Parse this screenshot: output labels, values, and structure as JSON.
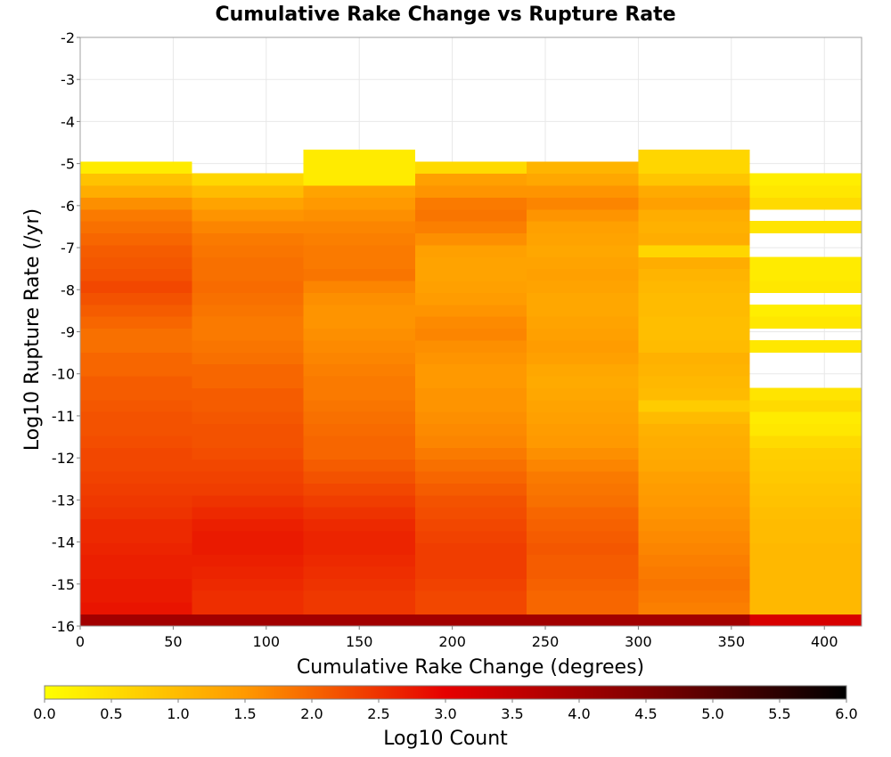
{
  "chart_data": {
    "type": "heatmap",
    "title": "Cumulative Rake Change vs Rupture Rate",
    "xlabel": "Cumulative Rake Change (degrees)",
    "ylabel": "Log10 Rupture Rate (/yr)",
    "xlim": [
      0,
      420
    ],
    "ylim": [
      -16,
      -2
    ],
    "xticks": [
      0,
      50,
      100,
      150,
      200,
      250,
      300,
      350,
      400
    ],
    "yticks": [
      -2,
      -3,
      -4,
      -5,
      -6,
      -7,
      -8,
      -9,
      -10,
      -11,
      -12,
      -13,
      -14,
      -15,
      -16
    ],
    "x_bin_edges": [
      0,
      60,
      120,
      180,
      240,
      300,
      360,
      420
    ],
    "y_bin_start": -16,
    "y_bin_width": 0.2833,
    "grid": true,
    "colorbar": {
      "label": "Log10 Count",
      "range": [
        0,
        6
      ],
      "ticks": [
        "0.0",
        "0.5",
        "1.0",
        "1.5",
        "2.0",
        "2.5",
        "3.0",
        "3.5",
        "4.0",
        "4.5",
        "5.0",
        "5.5",
        "6.0"
      ],
      "colors": [
        "#ffff00",
        "#ff9900",
        "#e60000",
        "#800000",
        "#000000"
      ]
    },
    "series": [
      {
        "x_range": [
          0,
          60
        ],
        "values": [
          4.0,
          2.8,
          2.75,
          2.75,
          2.7,
          2.7,
          2.65,
          2.6,
          2.6,
          2.5,
          2.45,
          2.4,
          2.35,
          2.3,
          2.3,
          2.25,
          2.2,
          2.2,
          2.15,
          2.1,
          2.1,
          2.0,
          2.0,
          1.9,
          1.9,
          2.0,
          2.1,
          2.2,
          2.3,
          2.2,
          2.15,
          2.1,
          2.0,
          1.9,
          1.8,
          1.6,
          1.2,
          0.9,
          0.3,
          null,
          null,
          null,
          null,
          null,
          null,
          null,
          null,
          null,
          null
        ]
      },
      {
        "x_range": [
          60,
          120
        ],
        "values": [
          4.0,
          2.55,
          2.55,
          2.6,
          2.65,
          2.7,
          2.75,
          2.75,
          2.7,
          2.6,
          2.5,
          2.4,
          2.35,
          2.3,
          2.25,
          2.2,
          2.2,
          2.15,
          2.1,
          2.1,
          2.0,
          2.0,
          1.9,
          1.85,
          1.8,
          1.8,
          1.85,
          1.9,
          1.95,
          1.9,
          1.9,
          1.85,
          1.8,
          1.7,
          1.55,
          1.35,
          1.0,
          0.6,
          null,
          null,
          null,
          null,
          null,
          null,
          null,
          null,
          null,
          null,
          null
        ]
      },
      {
        "x_range": [
          120,
          180
        ],
        "values": [
          4.0,
          2.45,
          2.45,
          2.5,
          2.55,
          2.6,
          2.65,
          2.65,
          2.6,
          2.5,
          2.4,
          2.3,
          2.2,
          2.1,
          2.0,
          2.0,
          1.95,
          1.9,
          1.85,
          1.8,
          1.8,
          1.75,
          1.7,
          1.65,
          1.6,
          1.55,
          1.55,
          1.6,
          1.7,
          1.85,
          1.8,
          1.8,
          1.75,
          1.7,
          1.6,
          1.5,
          1.35,
          0.3,
          0.3,
          0.3,
          null,
          null,
          null,
          null,
          null,
          null,
          null,
          null,
          null
        ]
      },
      {
        "x_range": [
          180,
          240
        ],
        "values": [
          4.0,
          2.3,
          2.3,
          2.35,
          2.4,
          2.4,
          2.4,
          2.35,
          2.3,
          2.25,
          2.2,
          2.1,
          2.0,
          1.9,
          1.8,
          1.7,
          1.65,
          1.6,
          1.55,
          1.55,
          1.5,
          1.5,
          1.55,
          1.6,
          1.7,
          1.65,
          1.55,
          1.45,
          1.4,
          1.35,
          1.35,
          1.4,
          1.6,
          1.75,
          1.85,
          1.8,
          1.55,
          1.4,
          0.55,
          null,
          null,
          null,
          null,
          null,
          null,
          null,
          null,
          null,
          null
        ]
      },
      {
        "x_range": [
          240,
          300
        ],
        "values": [
          4.0,
          2.0,
          2.0,
          2.05,
          2.1,
          2.1,
          2.15,
          2.1,
          2.05,
          2.0,
          1.9,
          1.85,
          1.8,
          1.7,
          1.6,
          1.5,
          1.45,
          1.4,
          1.35,
          1.3,
          1.25,
          1.3,
          1.4,
          1.45,
          1.4,
          1.35,
          1.3,
          1.3,
          1.35,
          1.4,
          1.35,
          1.3,
          1.35,
          1.4,
          1.55,
          1.7,
          1.55,
          1.3,
          1.1,
          null,
          null,
          null,
          null,
          null,
          null,
          null,
          null,
          null,
          null
        ]
      },
      {
        "x_range": [
          300,
          360
        ],
        "values": [
          4.0,
          1.75,
          1.8,
          1.85,
          1.8,
          1.75,
          1.7,
          1.65,
          1.6,
          1.55,
          1.5,
          1.45,
          1.4,
          1.3,
          1.25,
          1.2,
          1.15,
          1.0,
          0.75,
          1.0,
          1.05,
          1.1,
          1.15,
          1.0,
          0.95,
          0.95,
          1.0,
          1.0,
          1.05,
          1.1,
          1.2,
          0.6,
          1.2,
          1.15,
          1.2,
          1.4,
          1.25,
          0.85,
          0.6,
          0.6,
          null,
          null,
          null,
          null,
          null,
          null,
          null,
          null,
          null
        ]
      },
      {
        "x_range": [
          360,
          420
        ],
        "values": [
          3.2,
          1.05,
          1.05,
          1.05,
          1.05,
          1.05,
          1.05,
          1.0,
          1.0,
          0.95,
          0.9,
          0.85,
          0.8,
          0.75,
          0.7,
          0.55,
          0.35,
          0.3,
          0.55,
          0.4,
          null,
          null,
          null,
          0.35,
          null,
          0.35,
          0.25,
          null,
          0.35,
          0.3,
          0.3,
          null,
          null,
          0.4,
          null,
          0.55,
          0.35,
          0.25,
          null,
          null,
          null,
          null,
          null,
          null,
          null,
          null,
          null,
          null,
          null
        ]
      }
    ]
  }
}
